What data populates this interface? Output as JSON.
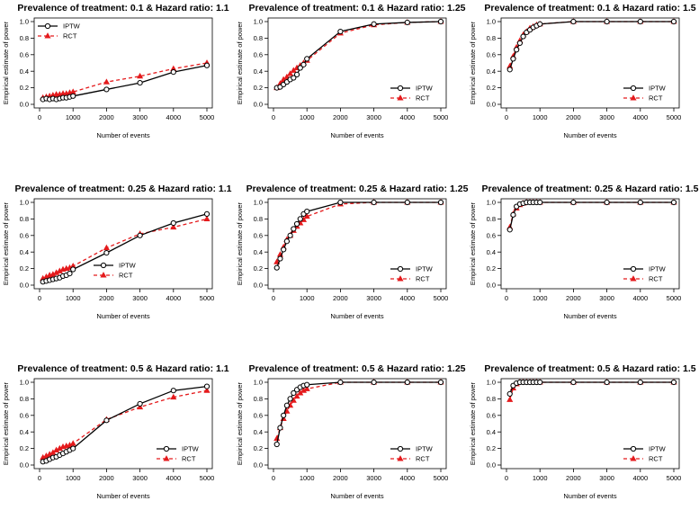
{
  "figure": {
    "x_axis_label": "Number of events",
    "y_axis_label": "Empirical estimate of power"
  },
  "colors": {
    "iptw": "#000000",
    "rct": "#e41a1c"
  },
  "chart_data": [
    {
      "type": "line",
      "title": "Prevalence of treatment: 0.1 & Hazard ratio: 1.1",
      "xlabel": "Number of events",
      "ylabel": "Empirical estimate of power",
      "xlim": [
        0,
        5000
      ],
      "ylim": [
        0,
        1
      ],
      "xticks": [
        0,
        1000,
        2000,
        3000,
        4000,
        5000
      ],
      "yticks": [
        0,
        0.2,
        0.4,
        0.6,
        0.8,
        1
      ],
      "x_tick_labels": [
        "0",
        "1000",
        "2000",
        "3000",
        "4000",
        "5000"
      ],
      "y_tick_labels": [
        "0.0",
        "0.2",
        "0.4",
        "0.6",
        "0.8",
        "1.0"
      ],
      "legend": "top-left",
      "x": [
        100,
        200,
        300,
        400,
        500,
        600,
        700,
        800,
        900,
        1000,
        2000,
        3000,
        4000,
        5000
      ],
      "series": [
        {
          "name": "IPTW",
          "values": [
            0.06,
            0.07,
            0.06,
            0.07,
            0.06,
            0.07,
            0.08,
            0.08,
            0.09,
            0.1,
            0.18,
            0.26,
            0.39,
            0.47
          ]
        },
        {
          "name": "RCT",
          "values": [
            0.08,
            0.09,
            0.1,
            0.11,
            0.12,
            0.12,
            0.13,
            0.13,
            0.14,
            0.15,
            0.27,
            0.34,
            0.43,
            0.5
          ]
        }
      ]
    },
    {
      "type": "line",
      "title": "Prevalence of treatment: 0.1 & Hazard ratio: 1.25",
      "xlabel": "Number of events",
      "ylabel": "Empirical estimate of power",
      "xlim": [
        0,
        5000
      ],
      "ylim": [
        0,
        1
      ],
      "xticks": [
        0,
        1000,
        2000,
        3000,
        4000,
        5000
      ],
      "yticks": [
        0,
        0.2,
        0.4,
        0.6,
        0.8,
        1
      ],
      "x_tick_labels": [
        "0",
        "1000",
        "2000",
        "3000",
        "4000",
        "5000"
      ],
      "y_tick_labels": [
        "0.0",
        "0.2",
        "0.4",
        "0.6",
        "0.8",
        "1.0"
      ],
      "legend": "bottom-right",
      "x": [
        100,
        200,
        300,
        400,
        500,
        600,
        700,
        800,
        900,
        1000,
        2000,
        3000,
        4000,
        5000
      ],
      "series": [
        {
          "name": "IPTW",
          "values": [
            0.2,
            0.21,
            0.24,
            0.27,
            0.3,
            0.32,
            0.36,
            0.44,
            0.48,
            0.55,
            0.88,
            0.97,
            0.99,
            1.0
          ]
        },
        {
          "name": "RCT",
          "values": [
            0.2,
            0.25,
            0.3,
            0.33,
            0.37,
            0.41,
            0.44,
            0.47,
            0.5,
            0.53,
            0.86,
            0.96,
            0.99,
            1.0
          ]
        }
      ]
    },
    {
      "type": "line",
      "title": "Prevalence of treatment: 0.1 & Hazard ratio: 1.5",
      "xlabel": "Number of events",
      "ylabel": "Empirical estimate of power",
      "xlim": [
        0,
        5000
      ],
      "ylim": [
        0,
        1
      ],
      "xticks": [
        0,
        1000,
        2000,
        3000,
        4000,
        5000
      ],
      "yticks": [
        0,
        0.2,
        0.4,
        0.6,
        0.8,
        1
      ],
      "x_tick_labels": [
        "0",
        "1000",
        "2000",
        "3000",
        "4000",
        "5000"
      ],
      "y_tick_labels": [
        "0.0",
        "0.2",
        "0.4",
        "0.6",
        "0.8",
        "1.0"
      ],
      "legend": "bottom-right",
      "x": [
        100,
        200,
        300,
        400,
        500,
        600,
        700,
        800,
        900,
        1000,
        2000,
        3000,
        4000,
        5000
      ],
      "series": [
        {
          "name": "IPTW",
          "values": [
            0.42,
            0.55,
            0.66,
            0.74,
            0.82,
            0.87,
            0.9,
            0.93,
            0.95,
            0.97,
            1.0,
            1.0,
            1.0,
            1.0
          ]
        },
        {
          "name": "RCT",
          "values": [
            0.46,
            0.58,
            0.69,
            0.77,
            0.84,
            0.88,
            0.92,
            0.94,
            0.96,
            0.97,
            1.0,
            1.0,
            1.0,
            1.0
          ]
        }
      ]
    },
    {
      "type": "line",
      "title": "Prevalence of treatment: 0.25 & Hazard ratio: 1.1",
      "xlabel": "Number of events",
      "ylabel": "Empirical estimate of power",
      "xlim": [
        0,
        5000
      ],
      "ylim": [
        0,
        1
      ],
      "xticks": [
        0,
        1000,
        2000,
        3000,
        4000,
        5000
      ],
      "yticks": [
        0,
        0.2,
        0.4,
        0.6,
        0.8,
        1
      ],
      "x_tick_labels": [
        "0",
        "1000",
        "2000",
        "3000",
        "4000",
        "5000"
      ],
      "y_tick_labels": [
        "0.0",
        "0.2",
        "0.4",
        "0.6",
        "0.8",
        "1.0"
      ],
      "legend": "bottom-left",
      "x": [
        100,
        200,
        300,
        400,
        500,
        600,
        700,
        800,
        900,
        1000,
        2000,
        3000,
        4000,
        5000
      ],
      "series": [
        {
          "name": "IPTW",
          "values": [
            0.04,
            0.05,
            0.06,
            0.07,
            0.08,
            0.09,
            0.11,
            0.12,
            0.14,
            0.19,
            0.39,
            0.6,
            0.75,
            0.86
          ]
        },
        {
          "name": "RCT",
          "values": [
            0.08,
            0.1,
            0.12,
            0.13,
            0.15,
            0.17,
            0.19,
            0.2,
            0.21,
            0.23,
            0.45,
            0.62,
            0.7,
            0.8
          ]
        }
      ]
    },
    {
      "type": "line",
      "title": "Prevalence of treatment: 0.25 & Hazard ratio: 1.25",
      "xlabel": "Number of events",
      "ylabel": "Empirical estimate of power",
      "xlim": [
        0,
        5000
      ],
      "ylim": [
        0,
        1
      ],
      "xticks": [
        0,
        1000,
        2000,
        3000,
        4000,
        5000
      ],
      "yticks": [
        0,
        0.2,
        0.4,
        0.6,
        0.8,
        1
      ],
      "x_tick_labels": [
        "0",
        "1000",
        "2000",
        "3000",
        "4000",
        "5000"
      ],
      "y_tick_labels": [
        "0.0",
        "0.2",
        "0.4",
        "0.6",
        "0.8",
        "1.0"
      ],
      "legend": "bottom-right",
      "x": [
        100,
        200,
        300,
        400,
        500,
        600,
        700,
        800,
        900,
        1000,
        2000,
        3000,
        4000,
        5000
      ],
      "series": [
        {
          "name": "IPTW",
          "values": [
            0.21,
            0.32,
            0.43,
            0.53,
            0.6,
            0.68,
            0.74,
            0.8,
            0.86,
            0.89,
            1.0,
            1.0,
            1.0,
            1.0
          ]
        },
        {
          "name": "RCT",
          "values": [
            0.28,
            0.37,
            0.46,
            0.55,
            0.6,
            0.66,
            0.71,
            0.75,
            0.79,
            0.83,
            0.98,
            1.0,
            1.0,
            1.0
          ]
        }
      ]
    },
    {
      "type": "line",
      "title": "Prevalence of treatment: 0.25 & Hazard ratio: 1.5",
      "xlabel": "Number of events",
      "ylabel": "Empirical estimate of power",
      "xlim": [
        0,
        5000
      ],
      "ylim": [
        0,
        1
      ],
      "xticks": [
        0,
        1000,
        2000,
        3000,
        4000,
        5000
      ],
      "yticks": [
        0,
        0.2,
        0.4,
        0.6,
        0.8,
        1
      ],
      "x_tick_labels": [
        "0",
        "1000",
        "2000",
        "3000",
        "4000",
        "5000"
      ],
      "y_tick_labels": [
        "0.0",
        "0.2",
        "0.4",
        "0.6",
        "0.8",
        "1.0"
      ],
      "legend": "bottom-right",
      "x": [
        100,
        200,
        300,
        400,
        500,
        600,
        700,
        800,
        900,
        1000,
        2000,
        3000,
        4000,
        5000
      ],
      "series": [
        {
          "name": "IPTW",
          "values": [
            0.67,
            0.85,
            0.95,
            0.98,
            0.99,
            1.0,
            1.0,
            1.0,
            1.0,
            1.0,
            1.0,
            1.0,
            1.0,
            1.0
          ]
        },
        {
          "name": "RCT",
          "values": [
            0.7,
            0.86,
            0.93,
            0.97,
            0.99,
            1.0,
            1.0,
            1.0,
            1.0,
            1.0,
            1.0,
            1.0,
            1.0,
            1.0
          ]
        }
      ]
    },
    {
      "type": "line",
      "title": "Prevalence of treatment: 0.5 & Hazard ratio: 1.1",
      "xlabel": "Number of events",
      "ylabel": "Empirical estimate of power",
      "xlim": [
        0,
        5000
      ],
      "ylim": [
        0,
        1
      ],
      "xticks": [
        0,
        1000,
        2000,
        3000,
        4000,
        5000
      ],
      "yticks": [
        0,
        0.2,
        0.4,
        0.6,
        0.8,
        1
      ],
      "x_tick_labels": [
        "0",
        "1000",
        "2000",
        "3000",
        "4000",
        "5000"
      ],
      "y_tick_labels": [
        "0.0",
        "0.2",
        "0.4",
        "0.6",
        "0.8",
        "1.0"
      ],
      "legend": "bottom-right",
      "x": [
        100,
        200,
        300,
        400,
        500,
        600,
        700,
        800,
        900,
        1000,
        2000,
        3000,
        4000,
        5000
      ],
      "series": [
        {
          "name": "IPTW",
          "values": [
            0.04,
            0.05,
            0.07,
            0.09,
            0.1,
            0.12,
            0.14,
            0.16,
            0.18,
            0.2,
            0.54,
            0.74,
            0.9,
            0.95
          ]
        },
        {
          "name": "RCT",
          "values": [
            0.09,
            0.11,
            0.13,
            0.15,
            0.18,
            0.2,
            0.22,
            0.23,
            0.24,
            0.26,
            0.55,
            0.7,
            0.82,
            0.9
          ]
        }
      ]
    },
    {
      "type": "line",
      "title": "Prevalence of treatment: 0.5 & Hazard ratio: 1.25",
      "xlabel": "Number of events",
      "ylabel": "Empirical estimate of power",
      "xlim": [
        0,
        5000
      ],
      "ylim": [
        0,
        1
      ],
      "xticks": [
        0,
        1000,
        2000,
        3000,
        4000,
        5000
      ],
      "yticks": [
        0,
        0.2,
        0.4,
        0.6,
        0.8,
        1
      ],
      "x_tick_labels": [
        "0",
        "1000",
        "2000",
        "3000",
        "4000",
        "5000"
      ],
      "y_tick_labels": [
        "0.0",
        "0.2",
        "0.4",
        "0.6",
        "0.8",
        "1.0"
      ],
      "legend": "bottom-right",
      "x": [
        100,
        200,
        300,
        400,
        500,
        600,
        700,
        800,
        900,
        1000,
        2000,
        3000,
        4000,
        5000
      ],
      "series": [
        {
          "name": "IPTW",
          "values": [
            0.25,
            0.45,
            0.6,
            0.72,
            0.8,
            0.87,
            0.91,
            0.94,
            0.96,
            0.97,
            1.0,
            1.0,
            1.0,
            1.0
          ]
        },
        {
          "name": "RCT",
          "values": [
            0.32,
            0.45,
            0.56,
            0.65,
            0.72,
            0.78,
            0.83,
            0.87,
            0.9,
            0.92,
            1.0,
            1.0,
            1.0,
            1.0
          ]
        }
      ]
    },
    {
      "type": "line",
      "title": "Prevalence of treatment: 0.5 & Hazard ratio: 1.5",
      "xlabel": "Number of events",
      "ylabel": "Empirical estimate of power",
      "xlim": [
        0,
        5000
      ],
      "ylim": [
        0,
        1
      ],
      "xticks": [
        0,
        1000,
        2000,
        3000,
        4000,
        5000
      ],
      "yticks": [
        0,
        0.2,
        0.4,
        0.6,
        0.8,
        1
      ],
      "x_tick_labels": [
        "0",
        "1000",
        "2000",
        "3000",
        "4000",
        "5000"
      ],
      "y_tick_labels": [
        "0.0",
        "0.2",
        "0.4",
        "0.6",
        "0.8",
        "1.0"
      ],
      "legend": "bottom-right",
      "x": [
        100,
        200,
        300,
        400,
        500,
        600,
        700,
        800,
        900,
        1000,
        2000,
        3000,
        4000,
        5000
      ],
      "series": [
        {
          "name": "IPTW",
          "values": [
            0.86,
            0.96,
            0.99,
            1.0,
            1.0,
            1.0,
            1.0,
            1.0,
            1.0,
            1.0,
            1.0,
            1.0,
            1.0,
            1.0
          ]
        },
        {
          "name": "RCT",
          "values": [
            0.79,
            0.93,
            0.98,
            1.0,
            1.0,
            1.0,
            1.0,
            1.0,
            1.0,
            1.0,
            1.0,
            1.0,
            1.0,
            1.0
          ]
        }
      ]
    }
  ]
}
